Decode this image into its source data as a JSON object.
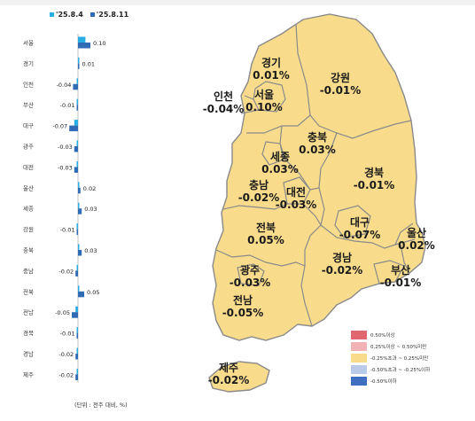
{
  "chart_data": [
    {
      "type": "bar",
      "orientation": "horizontal",
      "categories": [
        "서울",
        "경기",
        "인천",
        "부산",
        "대구",
        "광주",
        "대전",
        "울산",
        "세종",
        "강원",
        "충북",
        "충남",
        "전북",
        "전남",
        "경북",
        "경남",
        "제주"
      ],
      "series": [
        {
          "name": "'25.8.4",
          "color": "#29aee4",
          "values": [
            0.06,
            0.01,
            -0.01,
            -0.01,
            -0.03,
            -0.01,
            -0.01,
            0.01,
            0.01,
            -0.01,
            0.0,
            -0.01,
            0.01,
            -0.02,
            -0.01,
            -0.01,
            -0.01
          ]
        },
        {
          "name": "'25.8.11",
          "color": "#2f6cb5",
          "values": [
            0.1,
            0.01,
            -0.04,
            -0.01,
            -0.07,
            -0.03,
            -0.03,
            0.02,
            0.03,
            -0.01,
            0.03,
            -0.02,
            0.05,
            -0.05,
            -0.01,
            -0.02,
            -0.02
          ]
        }
      ],
      "data_labels": [
        "0.10",
        "0.01",
        "-0.04",
        "-0.01",
        "-0.07",
        "-0.03",
        "-0.03",
        "0.02",
        "0.03",
        "-0.01",
        "0.03",
        "-0.02",
        "0.05",
        "-0.05",
        "-0.01",
        "-0.02",
        "-0.02"
      ],
      "note": "(단위 : 전주 대비, %)"
    },
    {
      "type": "map",
      "regions": [
        {
          "name": "경기",
          "value": "0.01%"
        },
        {
          "name": "강원",
          "value": "-0.01%"
        },
        {
          "name": "인천",
          "value": "-0.04%"
        },
        {
          "name": "서울",
          "value": "0.10%"
        },
        {
          "name": "충북",
          "value": "0.03%"
        },
        {
          "name": "세종",
          "value": "0.03%"
        },
        {
          "name": "경북",
          "value": "-0.01%"
        },
        {
          "name": "충남",
          "value": "-0.02%"
        },
        {
          "name": "대전",
          "value": "-0.03%"
        },
        {
          "name": "대구",
          "value": "-0.07%"
        },
        {
          "name": "울산",
          "value": "0.02%"
        },
        {
          "name": "전북",
          "value": "0.05%"
        },
        {
          "name": "경남",
          "value": "-0.02%"
        },
        {
          "name": "부산",
          "value": "-0.01%"
        },
        {
          "name": "광주",
          "value": "-0.03%"
        },
        {
          "name": "전남",
          "value": "-0.05%"
        },
        {
          "name": "제주",
          "value": "-0.02%"
        }
      ],
      "legend": [
        {
          "label": "0.50%이상",
          "color": "#e06670"
        },
        {
          "label": "0.25%이상 ~ 0.50%미만",
          "color": "#f2b3b6"
        },
        {
          "label": "-0.25%초과 ~ 0.25%미만",
          "color": "#f8dc8c"
        },
        {
          "label": "-0.50%초과 ~ -0.25%이하",
          "color": "#b9cbe8"
        },
        {
          "label": "-0.50%이하",
          "color": "#3f6fc0"
        }
      ],
      "region_fill": "#f8dc8c",
      "region_stroke": "#8a8a8a"
    }
  ]
}
